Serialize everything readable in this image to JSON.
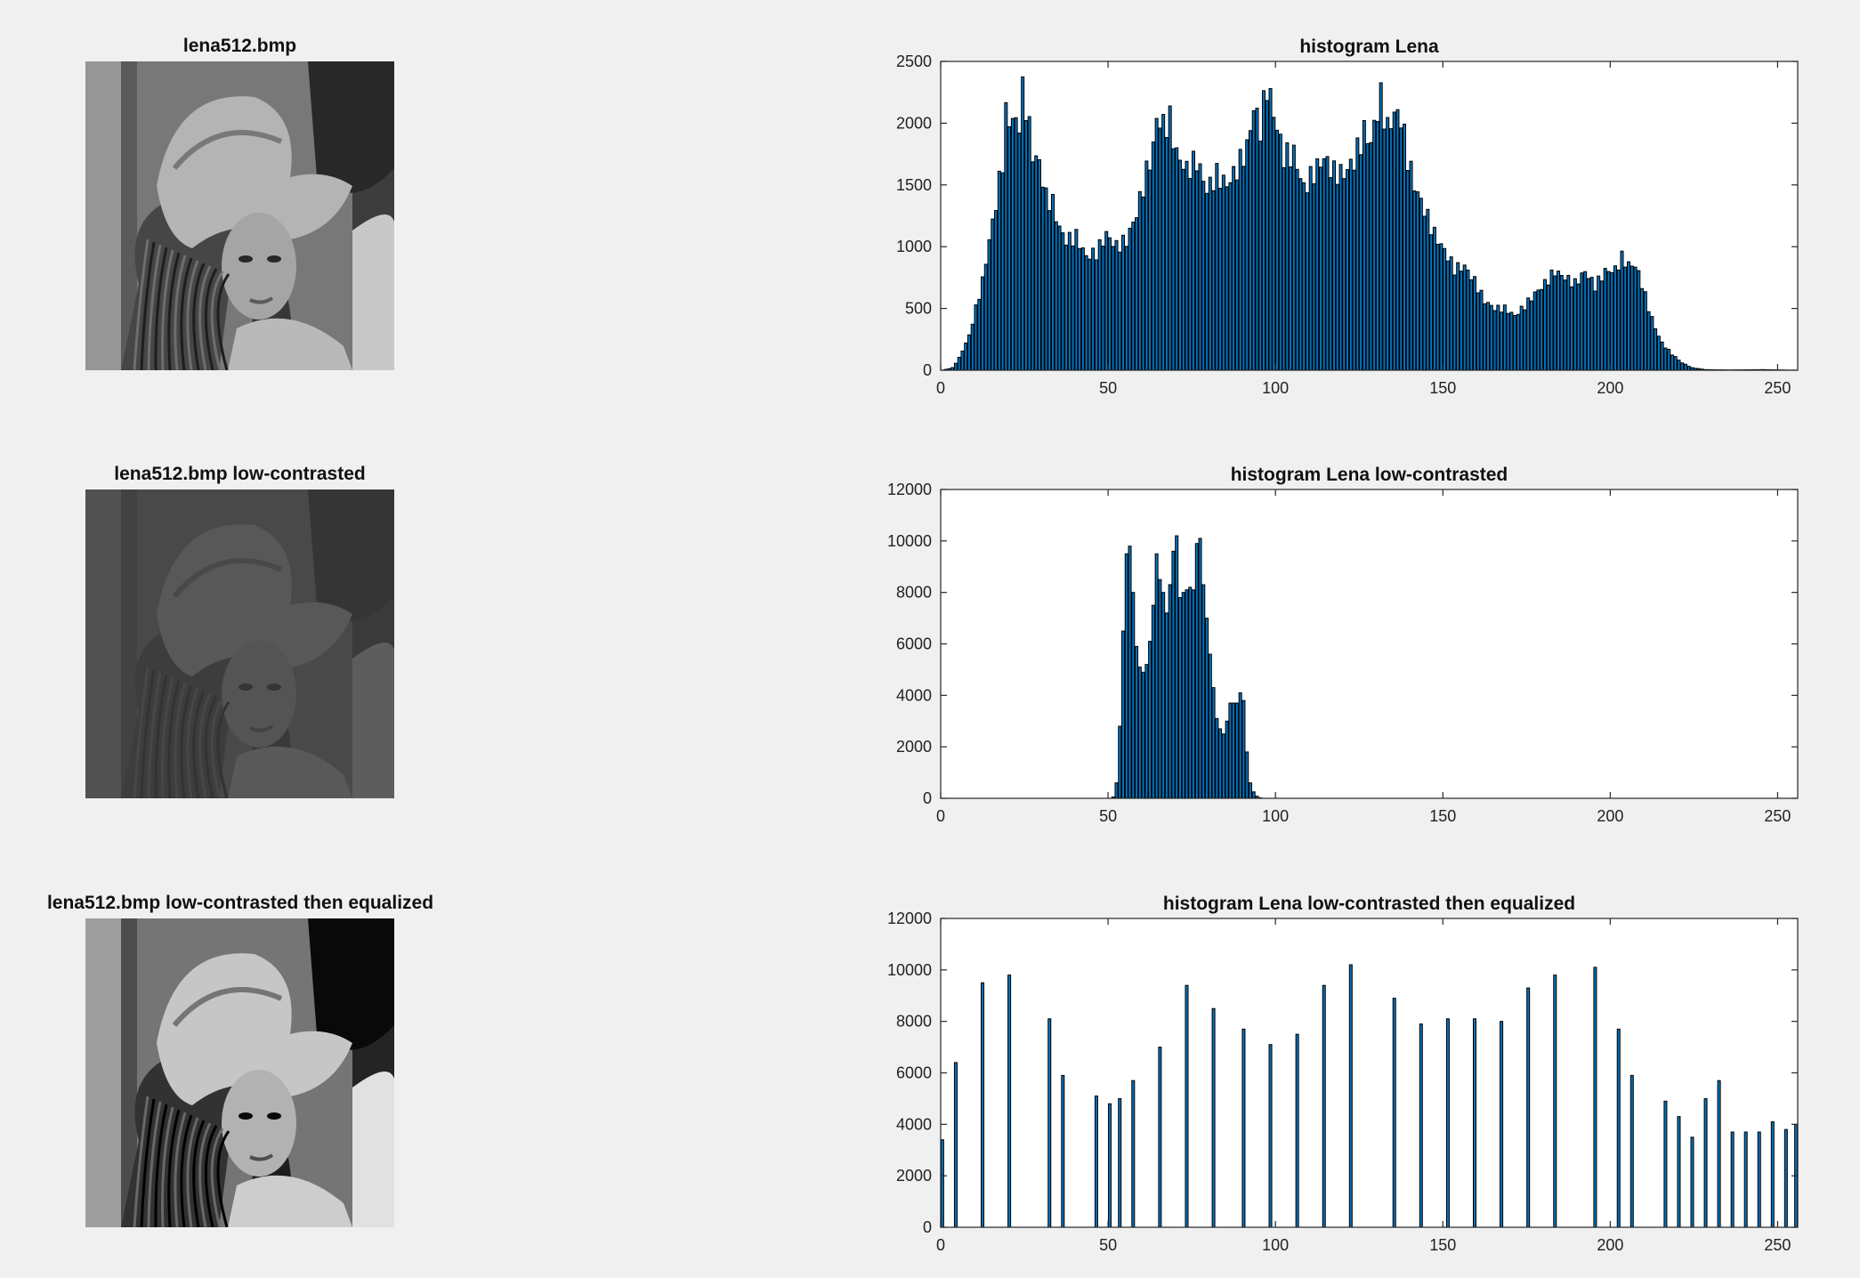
{
  "figure": {
    "images": [
      {
        "title": "lena512.bmp",
        "variant": "original"
      },
      {
        "title": "lena512.bmp low-contrasted",
        "variant": "low-contrast"
      },
      {
        "title": "lena512.bmp low-contrasted then equalized",
        "variant": "equalized"
      }
    ],
    "colors": {
      "background": "#f0f0f0",
      "bar_fill": "#0072BD",
      "bar_edge": "#000000",
      "axes_bg": "#ffffff",
      "axis_line": "#262626"
    }
  },
  "chart_data": [
    {
      "type": "bar",
      "title": "histogram Lena",
      "xlabel": "",
      "ylabel": "",
      "xlim": [
        0,
        255
      ],
      "ylim": [
        0,
        2500
      ],
      "xticks": [
        0,
        50,
        100,
        150,
        200,
        250
      ],
      "yticks": [
        0,
        500,
        1000,
        1500,
        2000,
        2500
      ],
      "grid": false,
      "bins": "0-255 (one bar per intensity level)",
      "series": [
        {
          "values_by_range": [
            {
              "x": 0,
              "y": 0
            },
            {
              "x": 3,
              "y": 20
            },
            {
              "x": 5,
              "y": 100
            },
            {
              "x": 8,
              "y": 280
            },
            {
              "x": 10,
              "y": 500
            },
            {
              "x": 12,
              "y": 720
            },
            {
              "x": 14,
              "y": 1050
            },
            {
              "x": 16,
              "y": 1350
            },
            {
              "x": 18,
              "y": 1700
            },
            {
              "x": 19,
              "y": 2060
            },
            {
              "x": 21,
              "y": 2020
            },
            {
              "x": 23,
              "y": 2000
            },
            {
              "x": 24,
              "y": 2250
            },
            {
              "x": 25,
              "y": 2150
            },
            {
              "x": 27,
              "y": 1750
            },
            {
              "x": 29,
              "y": 1680
            },
            {
              "x": 31,
              "y": 1400
            },
            {
              "x": 33,
              "y": 1350
            },
            {
              "x": 35,
              "y": 1150
            },
            {
              "x": 37,
              "y": 1050
            },
            {
              "x": 40,
              "y": 1080
            },
            {
              "x": 43,
              "y": 920
            },
            {
              "x": 46,
              "y": 950
            },
            {
              "x": 49,
              "y": 1100
            },
            {
              "x": 52,
              "y": 1000
            },
            {
              "x": 55,
              "y": 1050
            },
            {
              "x": 58,
              "y": 1270
            },
            {
              "x": 61,
              "y": 1600
            },
            {
              "x": 63,
              "y": 1800
            },
            {
              "x": 64,
              "y": 2040
            },
            {
              "x": 66,
              "y": 1980
            },
            {
              "x": 68,
              "y": 2020
            },
            {
              "x": 70,
              "y": 1750
            },
            {
              "x": 73,
              "y": 1620
            },
            {
              "x": 76,
              "y": 1700
            },
            {
              "x": 79,
              "y": 1460
            },
            {
              "x": 82,
              "y": 1580
            },
            {
              "x": 85,
              "y": 1500
            },
            {
              "x": 88,
              "y": 1630
            },
            {
              "x": 91,
              "y": 1800
            },
            {
              "x": 93,
              "y": 2130
            },
            {
              "x": 95,
              "y": 1960
            },
            {
              "x": 97,
              "y": 2310
            },
            {
              "x": 99,
              "y": 2080
            },
            {
              "x": 102,
              "y": 1730
            },
            {
              "x": 105,
              "y": 1750
            },
            {
              "x": 108,
              "y": 1470
            },
            {
              "x": 111,
              "y": 1600
            },
            {
              "x": 114,
              "y": 1720
            },
            {
              "x": 117,
              "y": 1600
            },
            {
              "x": 120,
              "y": 1590
            },
            {
              "x": 123,
              "y": 1700
            },
            {
              "x": 126,
              "y": 1930
            },
            {
              "x": 128,
              "y": 1840
            },
            {
              "x": 130,
              "y": 2110
            },
            {
              "x": 131,
              "y": 2200
            },
            {
              "x": 133,
              "y": 1950
            },
            {
              "x": 135,
              "y": 2080
            },
            {
              "x": 137,
              "y": 2050
            },
            {
              "x": 139,
              "y": 1720
            },
            {
              "x": 141,
              "y": 1500
            },
            {
              "x": 144,
              "y": 1300
            },
            {
              "x": 147,
              "y": 1100
            },
            {
              "x": 150,
              "y": 970
            },
            {
              "x": 153,
              "y": 820
            },
            {
              "x": 156,
              "y": 840
            },
            {
              "x": 159,
              "y": 720
            },
            {
              "x": 162,
              "y": 560
            },
            {
              "x": 165,
              "y": 500
            },
            {
              "x": 168,
              "y": 500
            },
            {
              "x": 171,
              "y": 440
            },
            {
              "x": 174,
              "y": 520
            },
            {
              "x": 177,
              "y": 620
            },
            {
              "x": 180,
              "y": 700
            },
            {
              "x": 183,
              "y": 800
            },
            {
              "x": 186,
              "y": 750
            },
            {
              "x": 189,
              "y": 700
            },
            {
              "x": 192,
              "y": 800
            },
            {
              "x": 195,
              "y": 680
            },
            {
              "x": 198,
              "y": 800
            },
            {
              "x": 201,
              "y": 810
            },
            {
              "x": 203,
              "y": 910
            },
            {
              "x": 205,
              "y": 850
            },
            {
              "x": 207,
              "y": 850
            },
            {
              "x": 209,
              "y": 700
            },
            {
              "x": 211,
              "y": 500
            },
            {
              "x": 213,
              "y": 340
            },
            {
              "x": 215,
              "y": 220
            },
            {
              "x": 218,
              "y": 130
            },
            {
              "x": 221,
              "y": 60
            },
            {
              "x": 224,
              "y": 20
            },
            {
              "x": 228,
              "y": 5
            },
            {
              "x": 235,
              "y": 2
            },
            {
              "x": 245,
              "y": 5
            },
            {
              "x": 255,
              "y": 0
            }
          ]
        }
      ]
    },
    {
      "type": "bar",
      "title": "histogram Lena low-contrasted",
      "xlabel": "",
      "ylabel": "",
      "xlim": [
        0,
        255
      ],
      "ylim": [
        0,
        12000
      ],
      "xticks": [
        0,
        50,
        100,
        150,
        200,
        250
      ],
      "yticks": [
        0,
        2000,
        4000,
        6000,
        8000,
        10000,
        12000
      ],
      "grid": false,
      "series": [
        {
          "points": [
            {
              "x": 51,
              "y": 50
            },
            {
              "x": 52,
              "y": 600
            },
            {
              "x": 53,
              "y": 2800
            },
            {
              "x": 54,
              "y": 6500
            },
            {
              "x": 55,
              "y": 9500
            },
            {
              "x": 56,
              "y": 9800
            },
            {
              "x": 57,
              "y": 8000
            },
            {
              "x": 58,
              "y": 5900
            },
            {
              "x": 59,
              "y": 5100
            },
            {
              "x": 60,
              "y": 4900
            },
            {
              "x": 61,
              "y": 5200
            },
            {
              "x": 62,
              "y": 6100
            },
            {
              "x": 63,
              "y": 7500
            },
            {
              "x": 64,
              "y": 9500
            },
            {
              "x": 65,
              "y": 8500
            },
            {
              "x": 66,
              "y": 8000
            },
            {
              "x": 67,
              "y": 7200
            },
            {
              "x": 68,
              "y": 8300
            },
            {
              "x": 69,
              "y": 9600
            },
            {
              "x": 70,
              "y": 10200
            },
            {
              "x": 71,
              "y": 7800
            },
            {
              "x": 72,
              "y": 8000
            },
            {
              "x": 73,
              "y": 8100
            },
            {
              "x": 74,
              "y": 8200
            },
            {
              "x": 75,
              "y": 8100
            },
            {
              "x": 76,
              "y": 9900
            },
            {
              "x": 77,
              "y": 10100
            },
            {
              "x": 78,
              "y": 8300
            },
            {
              "x": 79,
              "y": 7000
            },
            {
              "x": 80,
              "y": 5600
            },
            {
              "x": 81,
              "y": 4300
            },
            {
              "x": 82,
              "y": 3100
            },
            {
              "x": 83,
              "y": 2700
            },
            {
              "x": 84,
              "y": 2500
            },
            {
              "x": 85,
              "y": 3000
            },
            {
              "x": 86,
              "y": 3700
            },
            {
              "x": 87,
              "y": 3700
            },
            {
              "x": 88,
              "y": 3700
            },
            {
              "x": 89,
              "y": 4100
            },
            {
              "x": 90,
              "y": 3800
            },
            {
              "x": 91,
              "y": 1800
            },
            {
              "x": 92,
              "y": 600
            },
            {
              "x": 93,
              "y": 250
            },
            {
              "x": 94,
              "y": 80
            },
            {
              "x": 95,
              "y": 20
            }
          ]
        }
      ]
    },
    {
      "type": "bar",
      "title": "histogram Lena low-contrasted then equalized",
      "xlabel": "",
      "ylabel": "",
      "xlim": [
        0,
        255
      ],
      "ylim": [
        0,
        12000
      ],
      "xticks": [
        0,
        50,
        100,
        150,
        200,
        250
      ],
      "yticks": [
        0,
        2000,
        4000,
        6000,
        8000,
        10000,
        12000
      ],
      "grid": false,
      "series": [
        {
          "points": [
            {
              "x": 0,
              "y": 3400
            },
            {
              "x": 4,
              "y": 6400
            },
            {
              "x": 12,
              "y": 9500
            },
            {
              "x": 20,
              "y": 9800
            },
            {
              "x": 32,
              "y": 8100
            },
            {
              "x": 36,
              "y": 5900
            },
            {
              "x": 46,
              "y": 5100
            },
            {
              "x": 50,
              "y": 4800
            },
            {
              "x": 53,
              "y": 5000
            },
            {
              "x": 57,
              "y": 5700
            },
            {
              "x": 65,
              "y": 7000
            },
            {
              "x": 73,
              "y": 9400
            },
            {
              "x": 81,
              "y": 8500
            },
            {
              "x": 90,
              "y": 7700
            },
            {
              "x": 98,
              "y": 7100
            },
            {
              "x": 106,
              "y": 7500
            },
            {
              "x": 114,
              "y": 9400
            },
            {
              "x": 122,
              "y": 10200
            },
            {
              "x": 135,
              "y": 8900
            },
            {
              "x": 143,
              "y": 7900
            },
            {
              "x": 151,
              "y": 8100
            },
            {
              "x": 159,
              "y": 8100
            },
            {
              "x": 167,
              "y": 8000
            },
            {
              "x": 175,
              "y": 9300
            },
            {
              "x": 183,
              "y": 9800
            },
            {
              "x": 195,
              "y": 10100
            },
            {
              "x": 202,
              "y": 7700
            },
            {
              "x": 206,
              "y": 5900
            },
            {
              "x": 216,
              "y": 4900
            },
            {
              "x": 220,
              "y": 4300
            },
            {
              "x": 224,
              "y": 3500
            },
            {
              "x": 228,
              "y": 5000
            },
            {
              "x": 232,
              "y": 5700
            },
            {
              "x": 236,
              "y": 3700
            },
            {
              "x": 240,
              "y": 3700
            },
            {
              "x": 244,
              "y": 3700
            },
            {
              "x": 248,
              "y": 4100
            },
            {
              "x": 252,
              "y": 3800
            },
            {
              "x": 255,
              "y": 4000
            }
          ]
        }
      ]
    }
  ]
}
